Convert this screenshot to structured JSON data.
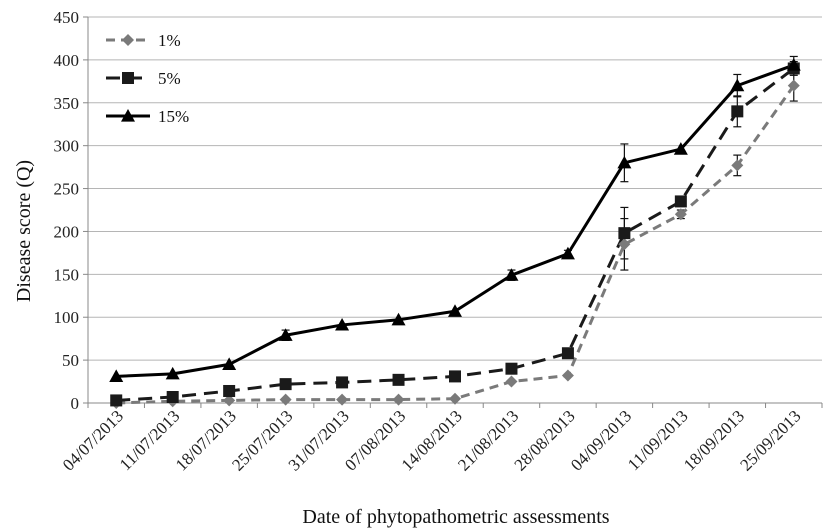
{
  "chart_data": {
    "type": "line",
    "title": "",
    "xlabel": "Date of phytopathometric assessments",
    "ylabel": "Disease score (Q)",
    "ylim": [
      0,
      450
    ],
    "yticks": [
      0,
      50,
      100,
      150,
      200,
      250,
      300,
      350,
      400,
      450
    ],
    "grid": "horizontal",
    "legend_position": "top-left",
    "categories": [
      "04/07/2013",
      "11/07/2013",
      "18/07/2013",
      "25/07/2013",
      "31/07/2013",
      "07/08/2013",
      "14/08/2013",
      "21/08/2013",
      "28/08/2013",
      "04/09/2013",
      "11/09/2013",
      "18/09/2013",
      "25/09/2013"
    ],
    "series": [
      {
        "name": "1%",
        "marker": "diamond",
        "line_style": "dashed",
        "color": "#7a7a7a",
        "values": [
          0,
          2,
          3,
          4,
          4,
          4,
          5,
          25,
          32,
          185,
          220,
          277,
          370
        ],
        "error": [
          0,
          0,
          0,
          0,
          0,
          0,
          0,
          0,
          0,
          30,
          5,
          12,
          18
        ]
      },
      {
        "name": "5%",
        "marker": "square",
        "line_style": "dashed",
        "color": "#1a1a1a",
        "values": [
          3,
          7,
          14,
          22,
          24,
          27,
          31,
          40,
          58,
          198,
          235,
          340,
          390
        ],
        "error": [
          0,
          0,
          0,
          0,
          0,
          0,
          0,
          3,
          5,
          30,
          5,
          18,
          8
        ]
      },
      {
        "name": "15%",
        "marker": "triangle",
        "line_style": "solid",
        "color": "#000000",
        "values": [
          31,
          34,
          45,
          79,
          91,
          97,
          107,
          149,
          174,
          280,
          296,
          370,
          394
        ],
        "error": [
          0,
          0,
          0,
          6,
          0,
          0,
          0,
          6,
          4,
          22,
          0,
          13,
          10
        ]
      }
    ]
  }
}
